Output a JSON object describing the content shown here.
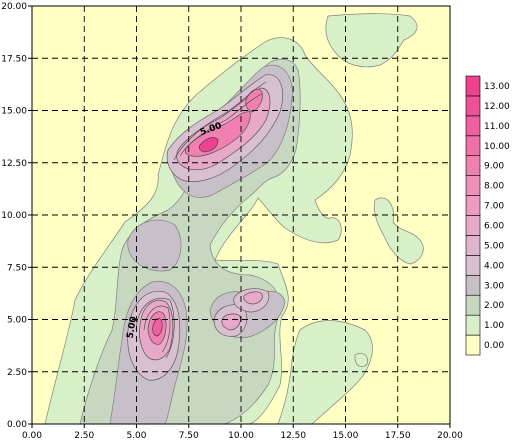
{
  "chart_data": {
    "type": "heatmap",
    "subtype": "filled-contour",
    "title": "",
    "xlabel": "",
    "ylabel": "",
    "xlim": [
      0,
      20
    ],
    "ylim": [
      0,
      20
    ],
    "x_ticks": [
      "0.00",
      "2.50",
      "5.00",
      "7.50",
      "10.00",
      "12.50",
      "15.00",
      "17.50",
      "20.00"
    ],
    "y_ticks": [
      "0.00",
      "2.50",
      "5.00",
      "7.50",
      "10.00",
      "12.50",
      "15.00",
      "17.50",
      "20.00"
    ],
    "grid": true,
    "grid_style": "dashed",
    "legend_position": "right",
    "levels": [
      "0.00",
      "1.00",
      "2.00",
      "3.00",
      "4.00",
      "5.00",
      "6.00",
      "7.00",
      "8.00",
      "9.00",
      "10.00",
      "11.00",
      "12.00",
      "13.00"
    ],
    "level_colors": [
      "#ffffc4",
      "#d8f0c8",
      "#c8d8c0",
      "#c8c0c8",
      "#d8c0d0",
      "#e0b4cc",
      "#e8a8c8",
      "#ec9cc0",
      "#f090b8",
      "#f080b0",
      "#f070a8",
      "#f060a0",
      "#f05098",
      "#f04090"
    ],
    "peaks": [
      {
        "x": 8.3,
        "y": 13.4,
        "value": 13
      },
      {
        "x": 6.1,
        "y": 4.6,
        "value": 11
      },
      {
        "x": 10.5,
        "y": 6.0,
        "value": 6
      },
      {
        "x": 9.5,
        "y": 4.9,
        "value": 6
      },
      {
        "x": 10.5,
        "y": 15.0,
        "value": 8
      }
    ],
    "contour_labels": [
      {
        "text": "5.00",
        "x": 8.6,
        "y": 14.0
      },
      {
        "text": "5.00",
        "x": 4.9,
        "y": 4.6
      }
    ]
  }
}
